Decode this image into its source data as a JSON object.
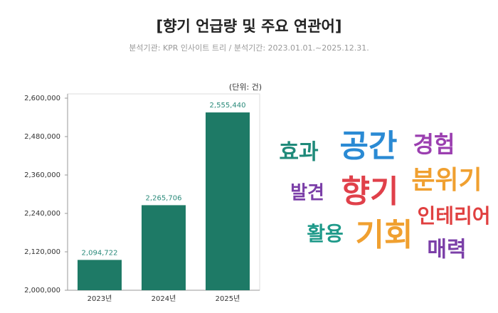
{
  "chart_data": {
    "type": "bar",
    "title": "[향기 언급량 및 주요 연관어]",
    "subtitle": "분석기관: KPR 인사이트 트리 / 분석기간: 2023.01.01.~2025.12.31.",
    "unit": "(단위: 건)",
    "categories": [
      "2023년",
      "2024년",
      "2025년"
    ],
    "values": [
      2094722,
      2265706,
      2555440
    ],
    "value_labels": [
      "2,094,722",
      "2,265,706",
      "2,555,440"
    ],
    "color": "#1e7a66",
    "ylim": [
      2000000,
      2600000
    ],
    "yticks": [
      {
        "value": 2000000,
        "label": "2,000,000"
      },
      {
        "value": 2120000,
        "label": "2,120,000"
      },
      {
        "value": 2240000,
        "label": "2,240,000"
      },
      {
        "value": 2360000,
        "label": "2,360,000"
      },
      {
        "value": 2480000,
        "label": "2,480,000"
      },
      {
        "value": 2600000,
        "label": "2,600,000"
      }
    ],
    "grid": false
  },
  "word_cloud": {
    "words": [
      {
        "text": "효과",
        "color": "#1f8a7a"
      },
      {
        "text": "공간",
        "color": "#2a8ad4"
      },
      {
        "text": "경험",
        "color": "#9b3fb0"
      },
      {
        "text": "발견",
        "color": "#7b3fa8"
      },
      {
        "text": "향기",
        "color": "#e0404a"
      },
      {
        "text": "분위기",
        "color": "#f0a030"
      },
      {
        "text": "인테리어",
        "color": "#e04040"
      },
      {
        "text": "활용",
        "color": "#1f9a8a"
      },
      {
        "text": "기회",
        "color": "#f0a030"
      },
      {
        "text": "매력",
        "color": "#7b3fa8"
      }
    ]
  }
}
